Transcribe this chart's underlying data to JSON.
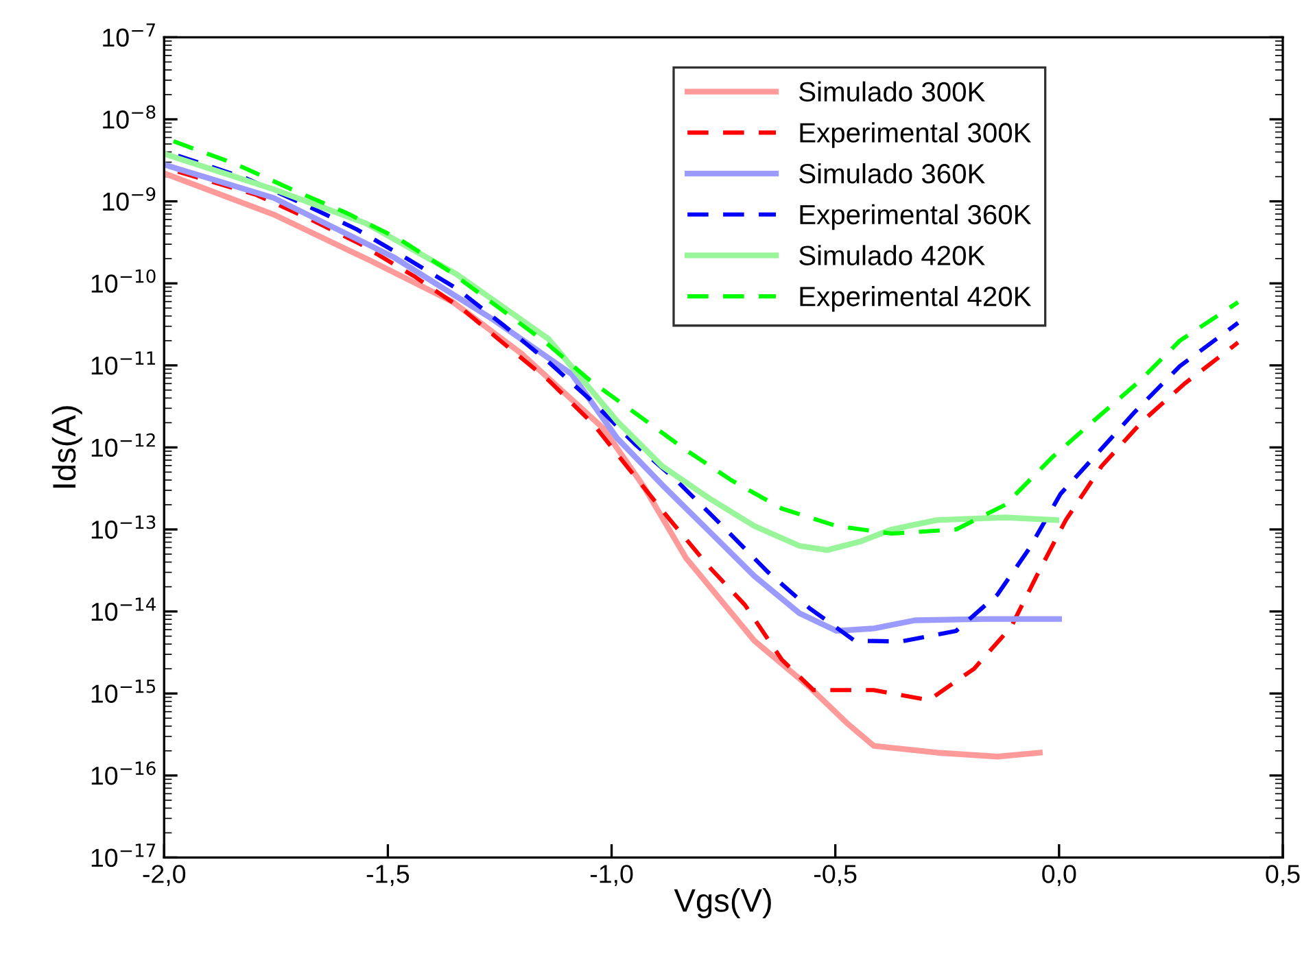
{
  "chart_data": {
    "type": "line",
    "xlabel": "Vgs(V)",
    "ylabel": "Ids(A)",
    "log": "y",
    "xlim": [
      -2.0,
      0.5
    ],
    "ylim": [
      1e-17,
      1e-07
    ],
    "xticks": [
      {
        "value": -2.0,
        "label": "-2,0"
      },
      {
        "value": -1.5,
        "label": "-1,5"
      },
      {
        "value": -1.0,
        "label": "-1,0"
      },
      {
        "value": -0.5,
        "label": "-0,5"
      },
      {
        "value": 0.0,
        "label": "0,0"
      },
      {
        "value": 0.5,
        "label": "0,5"
      }
    ],
    "yticks": [
      {
        "value": 1e-17,
        "label": "10$^{−17}$"
      },
      {
        "value": 1e-16,
        "label": "10$^{−16}$"
      },
      {
        "value": 1e-15,
        "label": "10$^{−15}$"
      },
      {
        "value": 1e-14,
        "label": "10$^{−14}$"
      },
      {
        "value": 1e-13,
        "label": "10$^{−13}$"
      },
      {
        "value": 1e-12,
        "label": "10$^{−12}$"
      },
      {
        "value": 1e-11,
        "label": "10$^{−11}$"
      },
      {
        "value": 1e-10,
        "label": "10$^{−10}$"
      },
      {
        "value": 1e-09,
        "label": "10$^{−9}$"
      },
      {
        "value": 1e-08,
        "label": "10$^{−8}$"
      },
      {
        "value": 1e-07,
        "label": "10$^{−7}$"
      }
    ],
    "grid": false,
    "legend": "top right",
    "marker": "none",
    "series": [
      {
        "name": "Simulado 300K",
        "color": "#ff9a9a",
        "line_style": "solid",
        "x": [
          -2.0,
          -1.755,
          -1.54,
          -1.356,
          -1.202,
          -1.018,
          -0.926,
          -0.834,
          -0.681,
          -0.558,
          -0.475,
          -0.414,
          -0.273,
          -0.138,
          -0.043
        ],
        "values": [
          2.2e-09,
          6.9e-10,
          1.9e-10,
          6e-11,
          1.4e-11,
          1.7e-12,
          3.2e-13,
          4.5e-14,
          4.4e-15,
          1.2e-15,
          4.4e-16,
          2.3e-16,
          1.9e-16,
          1.7e-16,
          1.9e-16
        ]
      },
      {
        "name": "Experimental 300K",
        "color": "#ff0000",
        "line_style": "dashed",
        "x": [
          -1.969,
          -1.794,
          -1.672,
          -1.561,
          -1.439,
          -1.334,
          -1.233,
          -1.141,
          -1.04,
          -0.966,
          -0.874,
          -0.782,
          -0.702,
          -0.62,
          -0.549,
          -0.414,
          -0.291,
          -0.19,
          -0.107,
          -0.046,
          0.015,
          0.095,
          0.187,
          0.279,
          0.4
        ],
        "values": [
          2.3e-09,
          1.2e-09,
          6e-10,
          3e-10,
          1.2e-10,
          4.9e-11,
          1.7e-11,
          6.6e-12,
          1.9e-12,
          5.9e-13,
          1.4e-13,
          3.5e-14,
          1.2e-14,
          2.6e-15,
          1.1e-15,
          1.1e-15,
          8.3e-16,
          2e-15,
          6.5e-15,
          3e-14,
          1.3e-13,
          5.9e-13,
          2.1e-12,
          5.9e-12,
          1.9e-11
        ]
      },
      {
        "name": "Simulado 360K",
        "color": "#9a9aff",
        "line_style": "solid",
        "x": [
          -2.0,
          -1.755,
          -1.488,
          -1.264,
          -1.089,
          -0.988,
          -0.887,
          -0.782,
          -0.681,
          -0.58,
          -0.497,
          -0.414,
          -0.322,
          -0.169,
          0.0
        ],
        "values": [
          2.8e-09,
          1.1e-09,
          2.1e-10,
          3.6e-11,
          7.8e-12,
          1.3e-12,
          3.5e-13,
          9.5e-14,
          2.7e-14,
          9.5e-15,
          5.8e-15,
          6.2e-15,
          7.8e-15,
          8.1e-15,
          8.1e-15
        ]
      },
      {
        "name": "Experimental 360K",
        "color": "#0000ff",
        "line_style": "dashed",
        "x": [
          -1.969,
          -1.816,
          -1.693,
          -1.571,
          -1.457,
          -1.347,
          -1.242,
          -1.141,
          -1.04,
          -0.948,
          -0.856,
          -0.752,
          -0.65,
          -0.558,
          -0.457,
          -0.353,
          -0.23,
          -0.138,
          -0.067,
          0.003,
          0.086,
          0.169,
          0.27,
          0.4
        ],
        "values": [
          3.6e-09,
          1.9e-09,
          9.5e-10,
          4.6e-10,
          2e-10,
          8.7e-11,
          3.1e-11,
          1.1e-11,
          3.5e-12,
          1.1e-12,
          4e-13,
          1.1e-13,
          3e-14,
          1.1e-14,
          4.4e-15,
          4.3e-15,
          5.8e-15,
          1.6e-14,
          5.8e-14,
          2.7e-13,
          8.5e-13,
          2.7e-12,
          9.8e-12,
          3.3e-11
        ]
      },
      {
        "name": "Simulado 420K",
        "color": "#99f599",
        "line_style": "solid",
        "x": [
          -2.0,
          -1.755,
          -1.549,
          -1.347,
          -1.141,
          -0.988,
          -0.887,
          -0.782,
          -0.681,
          -0.58,
          -0.518,
          -0.445,
          -0.374,
          -0.273,
          -0.12,
          -0.006
        ],
        "values": [
          3.8e-09,
          1.4e-09,
          5.4e-10,
          1.3e-10,
          2.1e-11,
          2.1e-12,
          5.9e-13,
          2.4e-13,
          1.1e-13,
          6.3e-14,
          5.6e-14,
          7.1e-14,
          1e-13,
          1.3e-13,
          1.4e-13,
          1.3e-13
        ]
      },
      {
        "name": "Experimental 420K",
        "color": "#00ff00",
        "line_style": "dashed",
        "x": [
          -1.979,
          -1.837,
          -1.715,
          -1.592,
          -1.472,
          -1.362,
          -1.255,
          -1.147,
          -1.049,
          -0.942,
          -0.834,
          -0.733,
          -0.62,
          -0.497,
          -0.374,
          -0.23,
          -0.12,
          -0.015,
          0.077,
          0.178,
          0.27,
          0.4
        ],
        "values": [
          5.4e-09,
          2.8e-09,
          1.4e-09,
          7.2e-10,
          3.4e-10,
          1.4e-10,
          5.2e-11,
          1.9e-11,
          6.6e-12,
          2.5e-12,
          9.3e-13,
          4e-13,
          1.8e-13,
          1.1e-13,
          8.9e-14,
          1e-13,
          2e-13,
          7.6e-13,
          2.1e-12,
          6.3e-12,
          2e-11,
          5.9e-11
        ]
      }
    ]
  }
}
